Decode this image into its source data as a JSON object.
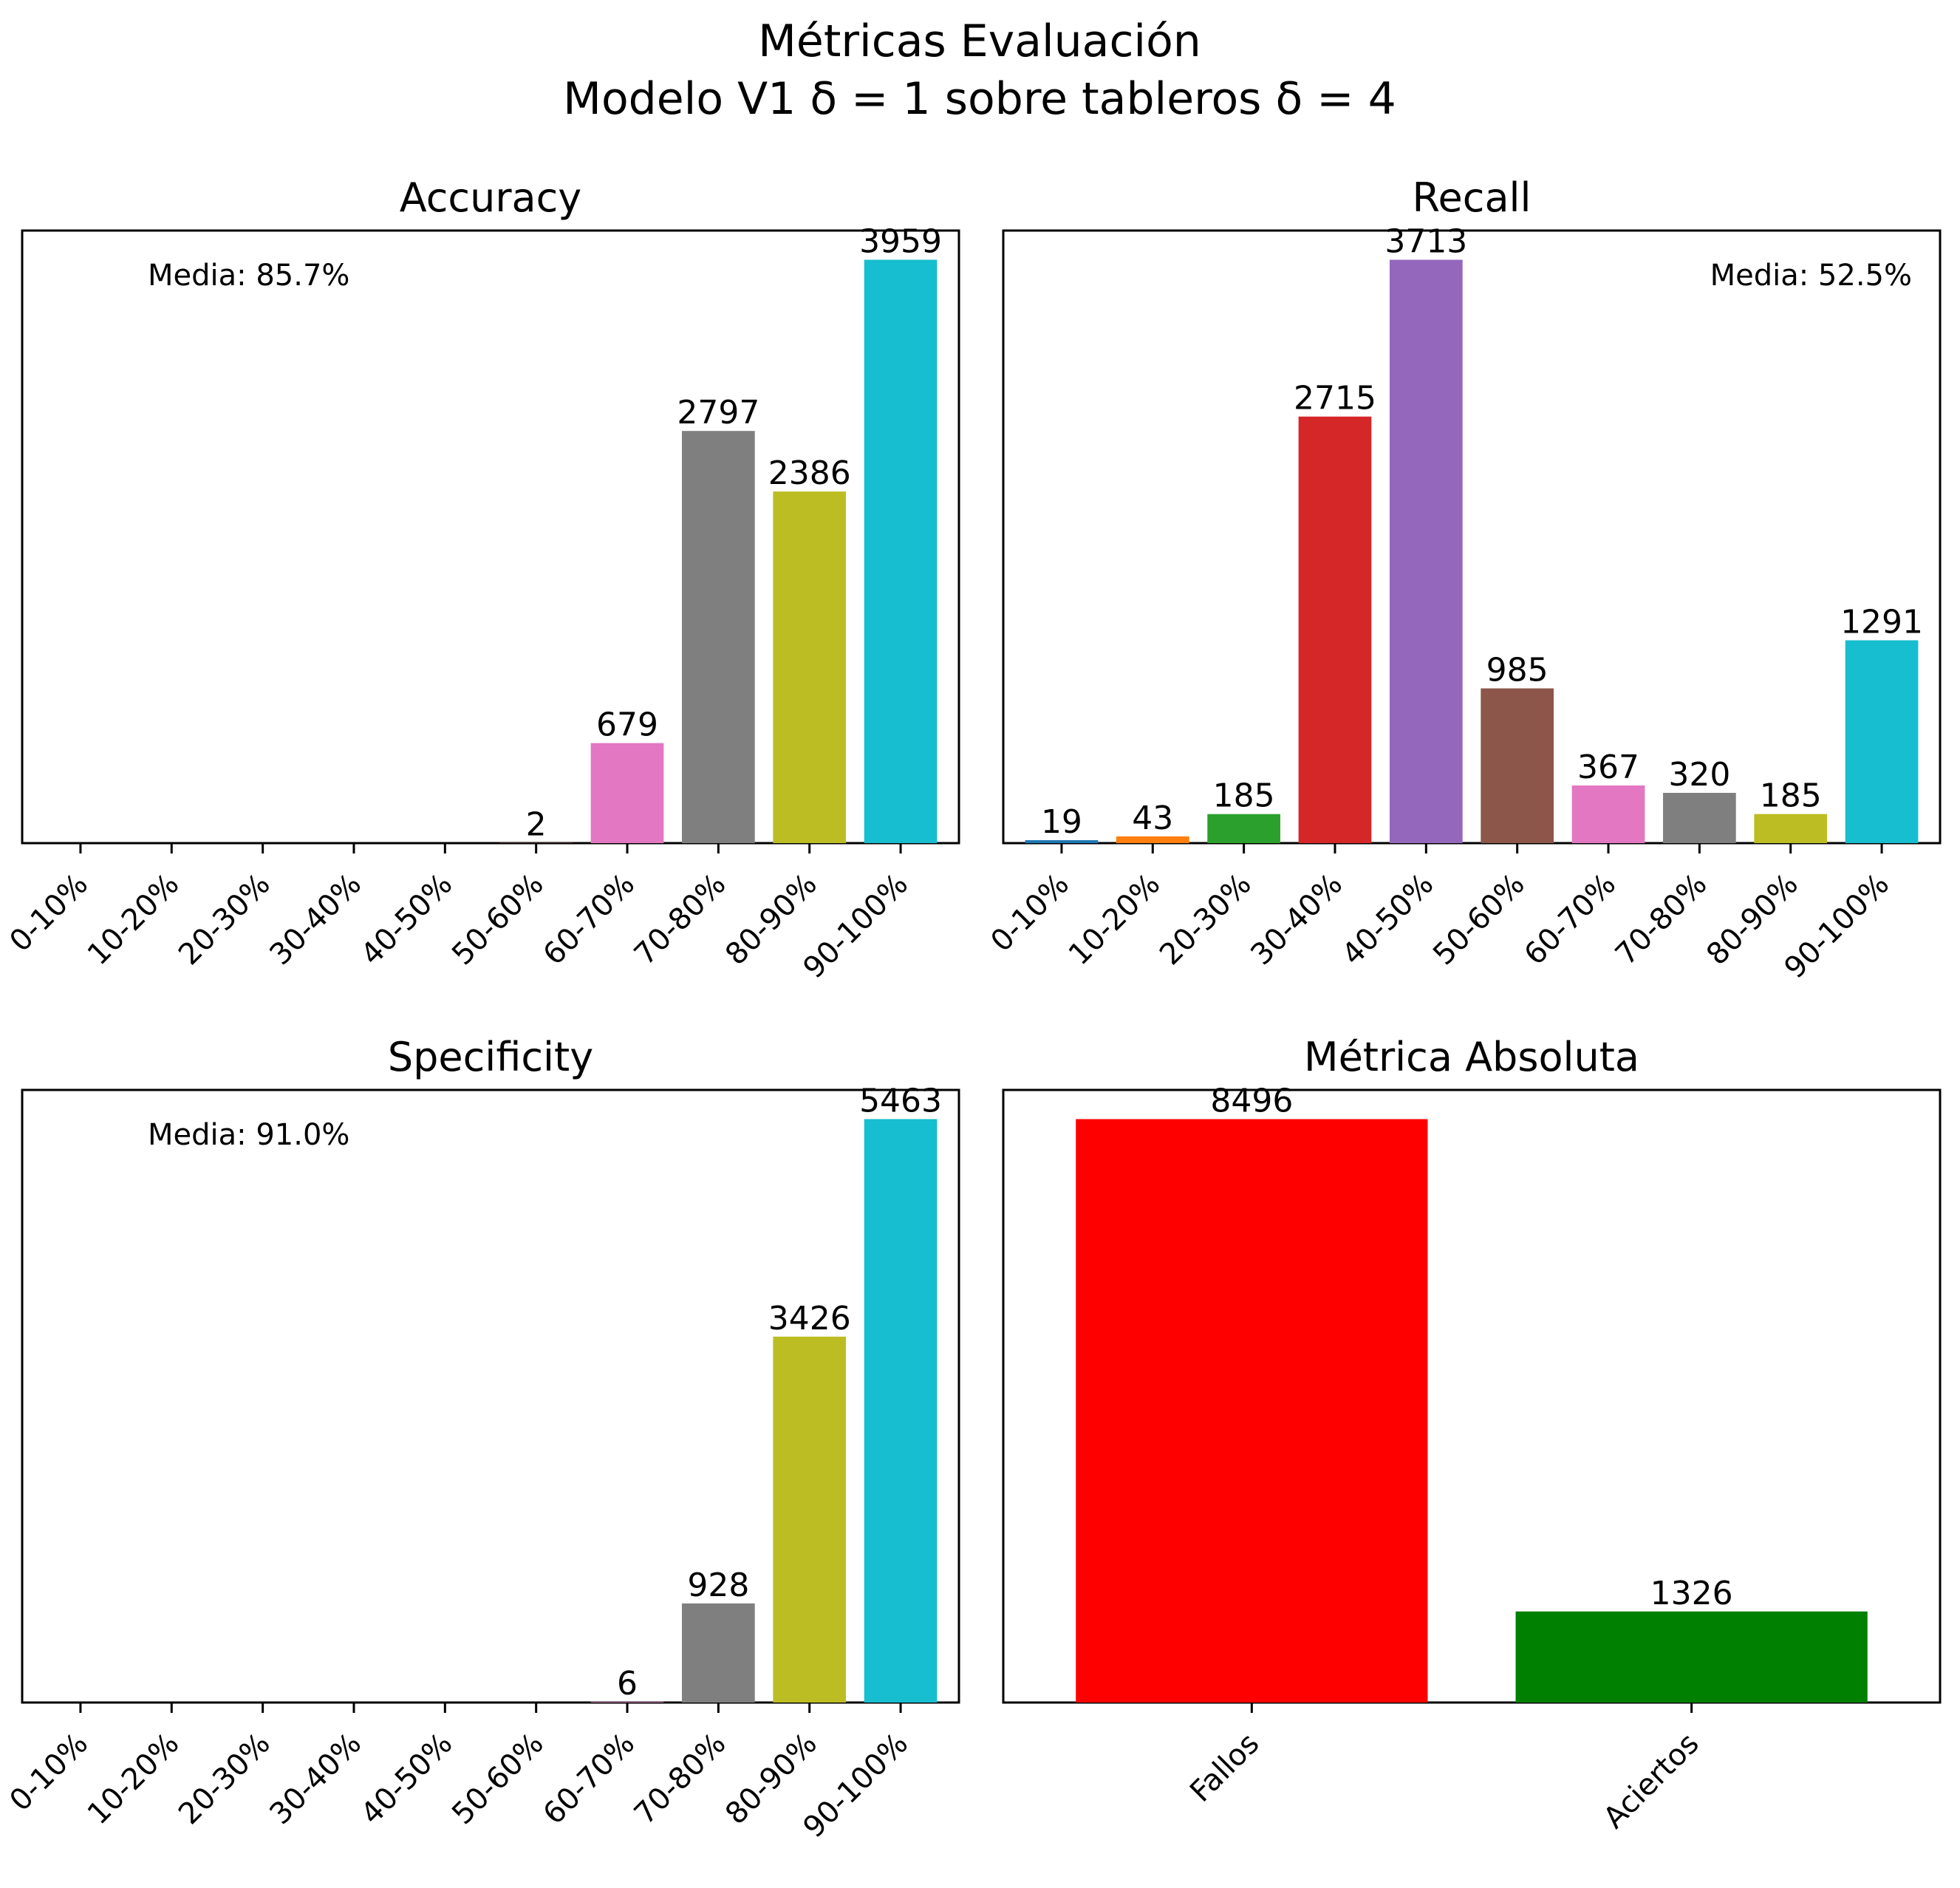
{
  "figure": {
    "title_line1": "Métricas Evaluación",
    "title_line2": "Modelo V1 δ = 1 sobre tableros δ = 4"
  },
  "colors": {
    "tab10": [
      "#1f77b4",
      "#ff7f0e",
      "#2ca02c",
      "#d62728",
      "#9467bd",
      "#8c564b",
      "#e377c2",
      "#7f7f7f",
      "#bcbd22",
      "#17becf"
    ],
    "fallos": "#ff0000",
    "aciertos": "#008000"
  },
  "chart_data": [
    {
      "id": "accuracy",
      "type": "bar",
      "title": "Accuracy",
      "categories": [
        "0-10%",
        "10-20%",
        "20-30%",
        "30-40%",
        "40-50%",
        "50-60%",
        "60-70%",
        "70-80%",
        "80-90%",
        "90-100%"
      ],
      "values": [
        0,
        0,
        0,
        0,
        0,
        2,
        679,
        2797,
        2386,
        3959
      ],
      "ylim": [
        0,
        4157
      ],
      "mean_note": "Media: 85.7%",
      "mean_note_position": "top-left",
      "y_ticks_visible": false,
      "grid": false
    },
    {
      "id": "recall",
      "type": "bar",
      "title": "Recall",
      "categories": [
        "0-10%",
        "10-20%",
        "20-30%",
        "30-40%",
        "40-50%",
        "50-60%",
        "60-70%",
        "70-80%",
        "80-90%",
        "90-100%"
      ],
      "values": [
        19,
        43,
        185,
        2715,
        3713,
        985,
        367,
        320,
        185,
        1291
      ],
      "ylim": [
        0,
        3899
      ],
      "mean_note": "Media: 52.5%",
      "mean_note_position": "top-right",
      "y_ticks_visible": false,
      "grid": false
    },
    {
      "id": "specificity",
      "type": "bar",
      "title": "Specificity",
      "categories": [
        "0-10%",
        "10-20%",
        "20-30%",
        "30-40%",
        "40-50%",
        "50-60%",
        "60-70%",
        "70-80%",
        "80-90%",
        "90-100%"
      ],
      "values": [
        0,
        0,
        0,
        0,
        0,
        0,
        6,
        928,
        3426,
        5463
      ],
      "ylim": [
        0,
        5736
      ],
      "mean_note": "Media: 91.0%",
      "mean_note_position": "top-left",
      "y_ticks_visible": false,
      "grid": false
    },
    {
      "id": "absoluta",
      "type": "bar",
      "title": "Métrica Absoluta",
      "categories": [
        "Fallos",
        "Aciertos"
      ],
      "values": [
        8496,
        1326
      ],
      "ylim": [
        0,
        8921
      ],
      "y_ticks_visible": false,
      "grid": false
    }
  ]
}
